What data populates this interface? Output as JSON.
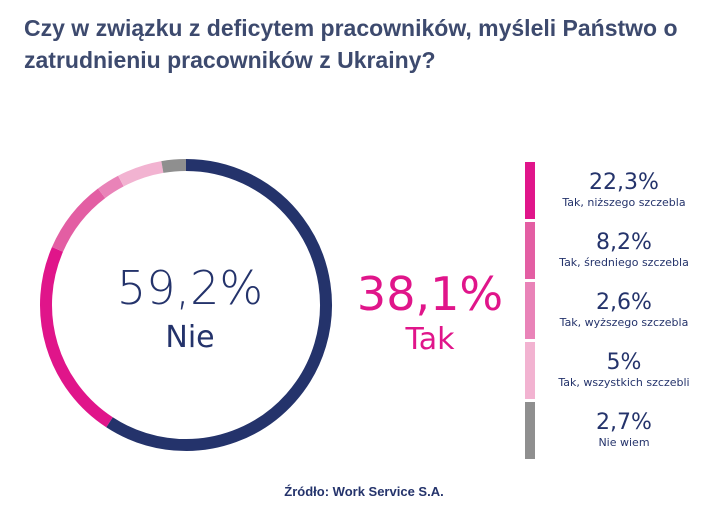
{
  "title": "Czy w związku z deficytem pracowników, myśleli Państwo o zatrudnieniu pracowników z Ukrainy?",
  "source": "Źródło: Work Service S.A.",
  "chart_data": {
    "type": "donut",
    "title": "Czy w związku z deficytem pracowników, myśleli Państwo o zatrudnieniu pracowników z Ukrainy?",
    "center": {
      "value": "59,2%",
      "label": "Nie"
    },
    "secondary": {
      "value": "38,1%",
      "label": "Tak"
    },
    "slices": [
      {
        "name": "Nie",
        "value": 59.2,
        "color": "#24336b"
      },
      {
        "name": "Tak, niższego szczebla",
        "value": 22.3,
        "color": "#e0158a"
      },
      {
        "name": "Tak, średniego szczebla",
        "value": 8.2,
        "color": "#e35ea3"
      },
      {
        "name": "Tak, wyższego szczebla",
        "value": 2.6,
        "color": "#e983b8"
      },
      {
        "name": "Tak, wszystkich szczebli",
        "value": 5,
        "color": "#f2b3d1"
      },
      {
        "name": "Nie wiem",
        "value": 2.7,
        "color": "#8f8f8f"
      }
    ],
    "breakdown": [
      {
        "value": "22,3%",
        "label": "Tak, niższego szczebla",
        "color": "#e0158a"
      },
      {
        "value": "8,2%",
        "label": "Tak, średniego szczebla",
        "color": "#e35ea3"
      },
      {
        "value": "2,6%",
        "label": "Tak, wyższego szczebla",
        "color": "#e983b8"
      },
      {
        "value": "5%",
        "label": "Tak, wszystkich szczebli",
        "color": "#f2b3d1"
      },
      {
        "value": "2,7%",
        "label": "Nie wiem",
        "color": "#8f8f8f"
      }
    ]
  }
}
